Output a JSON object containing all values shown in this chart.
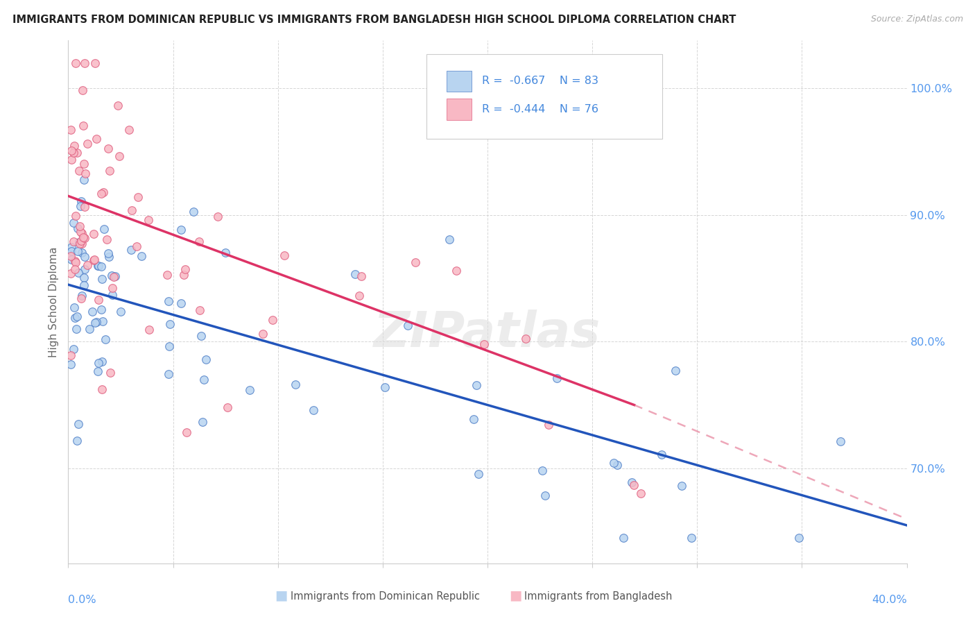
{
  "title": "IMMIGRANTS FROM DOMINICAN REPUBLIC VS IMMIGRANTS FROM BANGLADESH HIGH SCHOOL DIPLOMA CORRELATION CHART",
  "source": "Source: ZipAtlas.com",
  "ylabel": "High School Diploma",
  "xmin": 0.0,
  "xmax": 0.4,
  "ymin": 0.625,
  "ymax": 1.038,
  "watermark": "ZIPatlas",
  "legend1_r": "-0.667",
  "legend1_n": "83",
  "legend2_r": "-0.444",
  "legend2_n": "76",
  "color_blue_fill": "#B8D4F0",
  "color_blue_edge": "#5080C8",
  "color_pink_fill": "#F8B8C4",
  "color_pink_edge": "#E06080",
  "color_line_blue": "#2255BB",
  "color_line_pink": "#DD3366",
  "color_line_pink_dash": "#E06080",
  "color_text_blue": "#4488DD",
  "color_axis_blue": "#5599EE",
  "color_grid": "#CCCCCC",
  "yticks": [
    0.7,
    0.8,
    0.9,
    1.0
  ],
  "ytick_labels": [
    "70.0%",
    "80.0%",
    "90.0%",
    "100.0%"
  ],
  "xtick_label_left": "0.0%",
  "xtick_label_right": "40.0%",
  "legend_label_1": "Immigrants from Dominican Republic",
  "legend_label_2": "Immigrants from Bangladesh",
  "blue_trend_x0": 0.0,
  "blue_trend_x1": 0.4,
  "blue_trend_y0": 0.845,
  "blue_trend_y1": 0.655,
  "pink_trend_x0": 0.0,
  "pink_trend_x1_solid": 0.27,
  "pink_trend_x1_dash": 0.4,
  "pink_trend_y0": 0.915,
  "pink_trend_y1_solid": 0.75,
  "pink_trend_y1_dash": 0.66
}
